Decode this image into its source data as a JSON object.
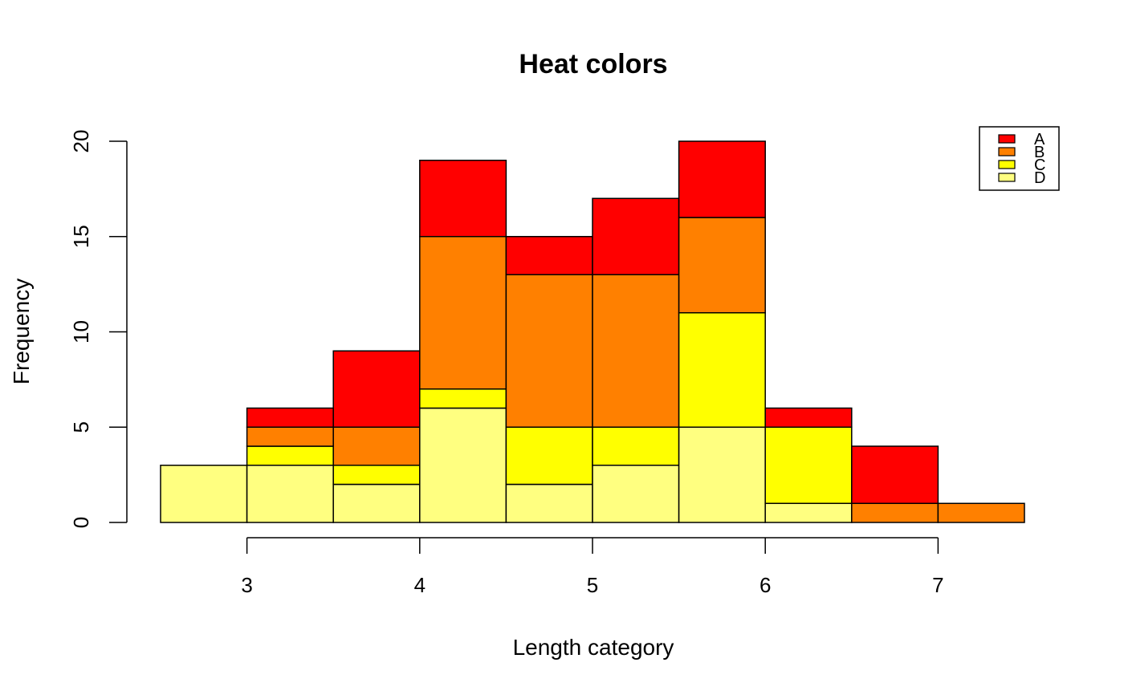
{
  "chart_data": {
    "type": "bar",
    "stacked": true,
    "title": "Heat colors",
    "xlabel": "Length category",
    "ylabel": "Frequency",
    "bin_width": 0.5,
    "x": [
      2.5,
      3.0,
      3.5,
      4.0,
      4.5,
      5.0,
      5.5,
      6.0,
      6.5,
      7.0
    ],
    "xlim": [
      2.5,
      7.5
    ],
    "ylim": [
      0,
      20
    ],
    "x_ticks": [
      3,
      4,
      5,
      6,
      7
    ],
    "y_ticks": [
      0,
      5,
      10,
      15,
      20
    ],
    "series": [
      {
        "name": "D",
        "color": "#FFFF80",
        "values": [
          3,
          3,
          2,
          6,
          2,
          3,
          5,
          1,
          0,
          0
        ]
      },
      {
        "name": "C",
        "color": "#FFFF00",
        "values": [
          0,
          1,
          1,
          1,
          3,
          2,
          6,
          4,
          0,
          0
        ]
      },
      {
        "name": "B",
        "color": "#FF8000",
        "values": [
          0,
          1,
          2,
          8,
          8,
          8,
          5,
          0,
          1,
          1
        ]
      },
      {
        "name": "A",
        "color": "#FF0000",
        "values": [
          0,
          1,
          4,
          4,
          2,
          4,
          4,
          1,
          3,
          0
        ]
      }
    ],
    "legend": {
      "placement": "top-right",
      "entries": [
        "A",
        "B",
        "C",
        "D"
      ]
    },
    "grid": false
  }
}
